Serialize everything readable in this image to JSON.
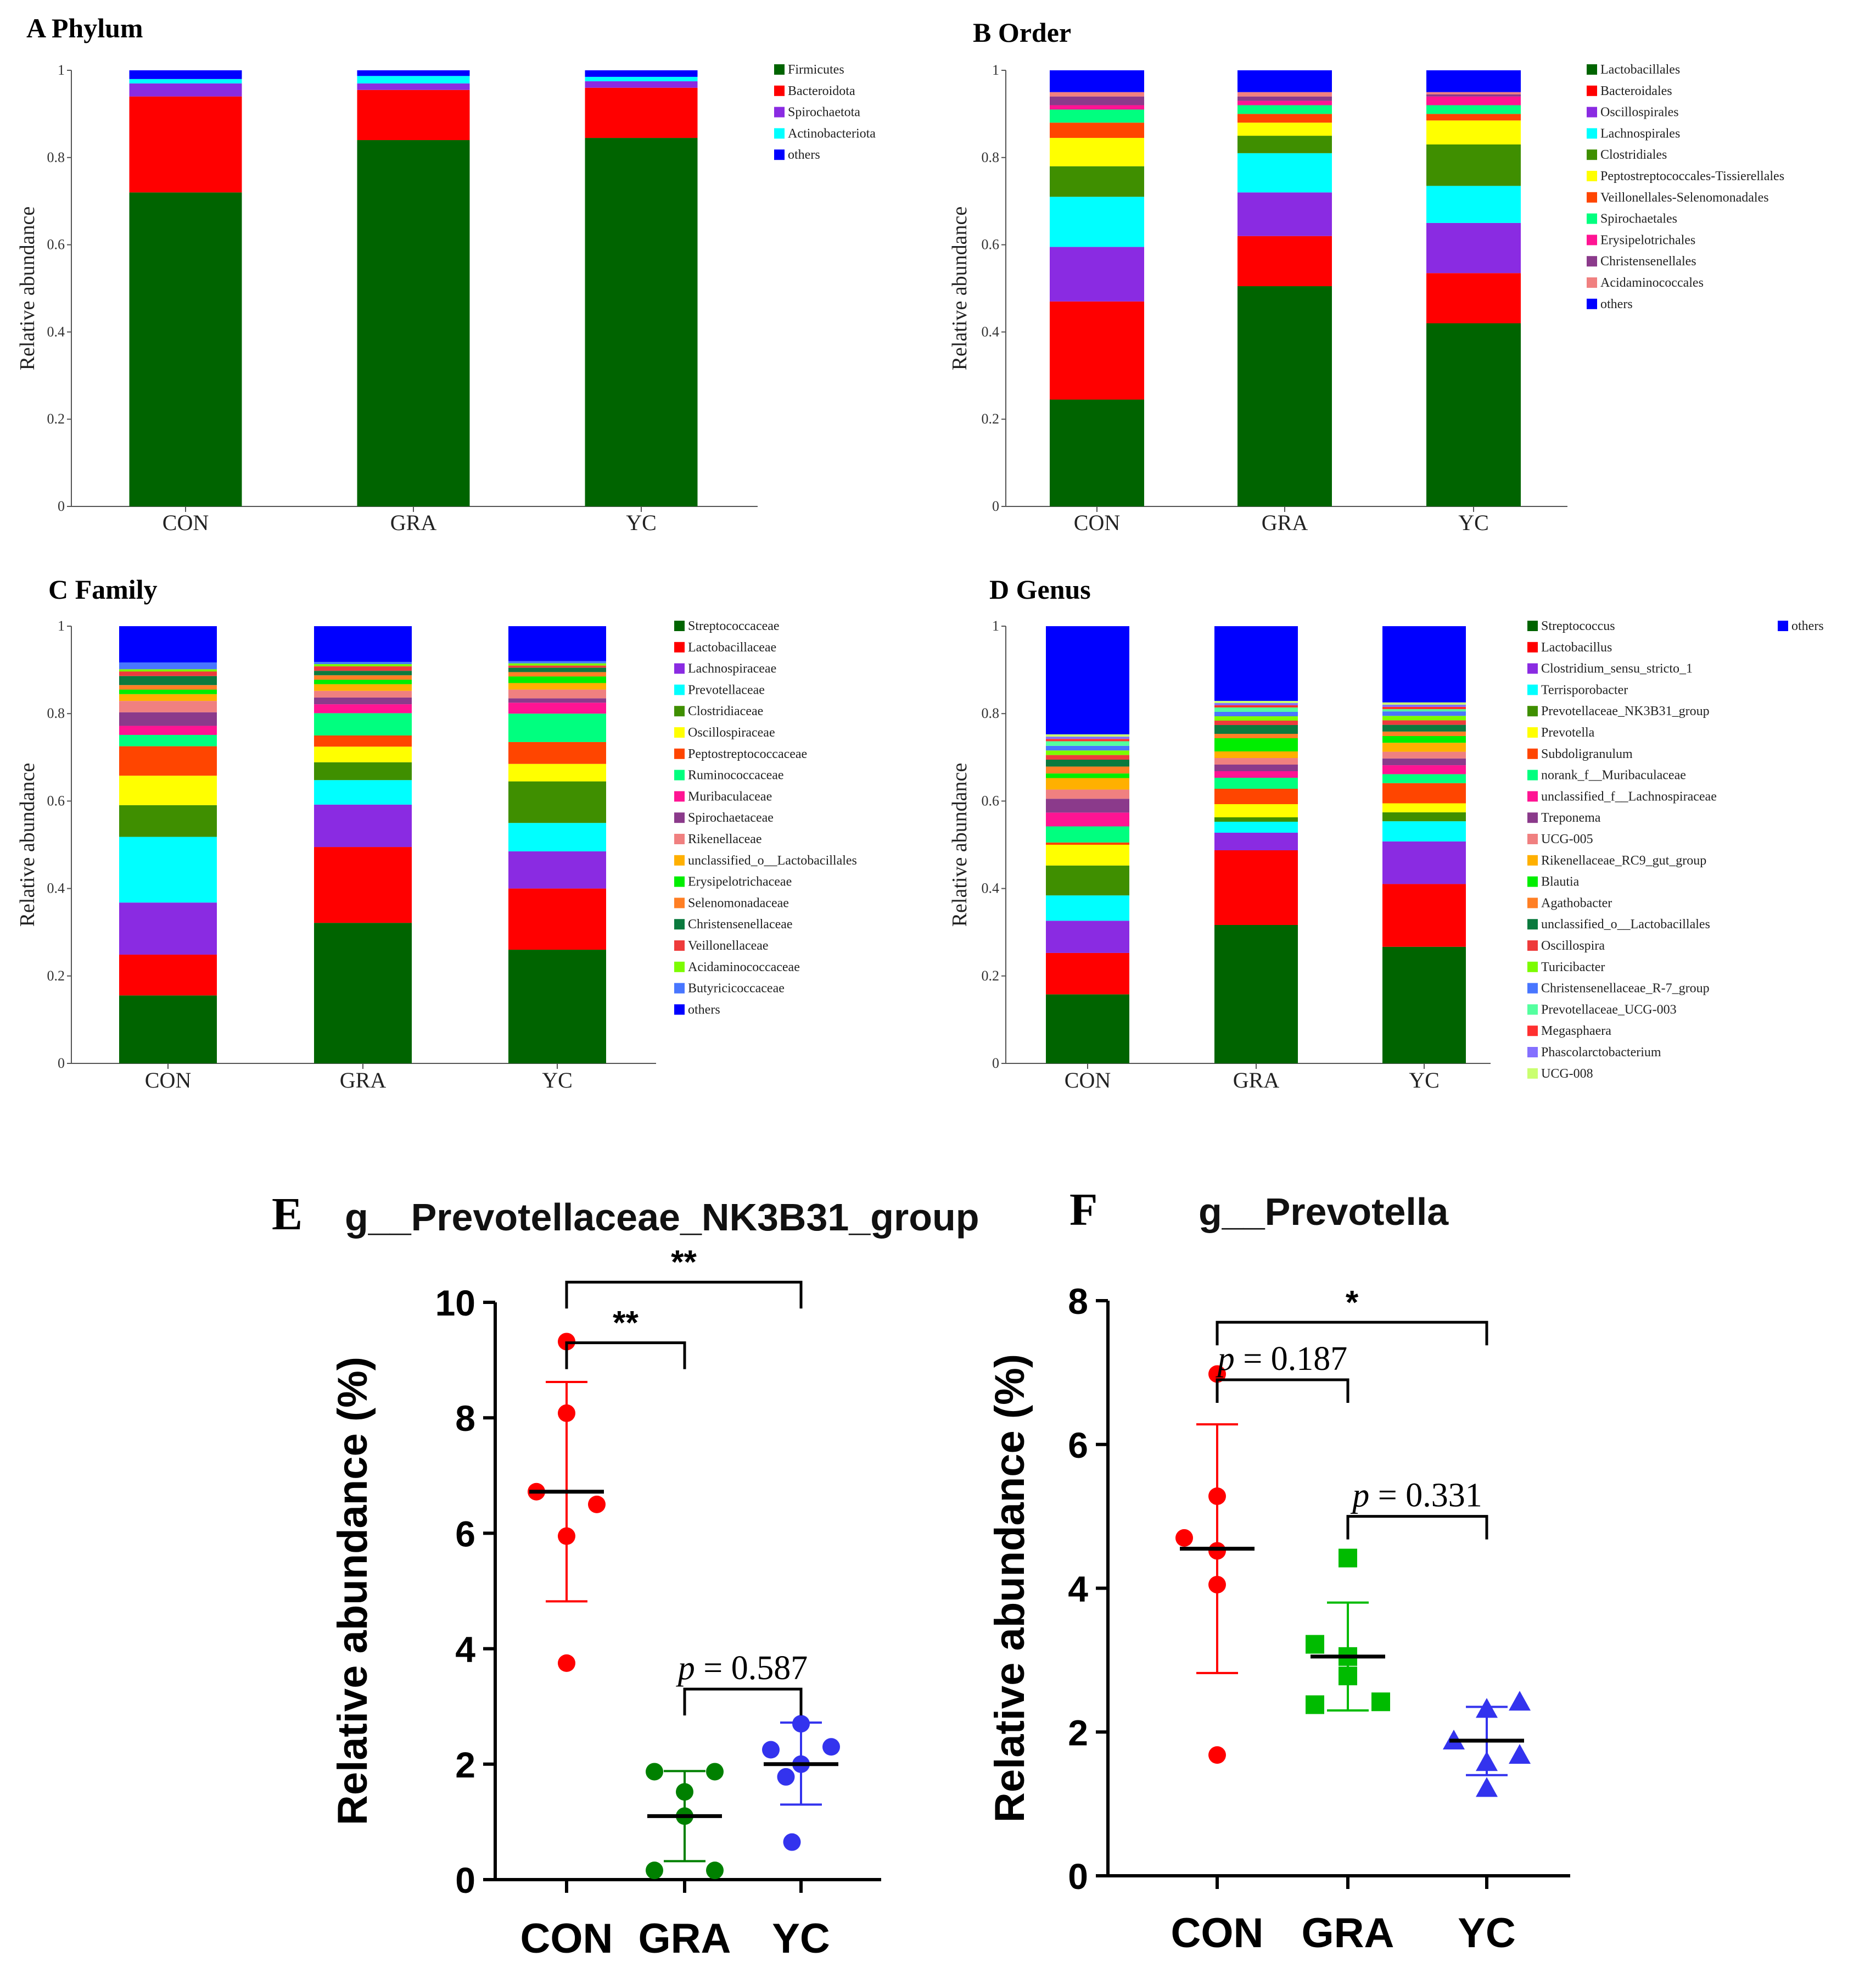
{
  "figure": {
    "panels": [
      {
        "id": "A",
        "label": "A Phylum"
      },
      {
        "id": "B",
        "label": "B Order"
      },
      {
        "id": "C",
        "label": "C Family"
      },
      {
        "id": "D",
        "label": "D Genus"
      }
    ]
  },
  "chart_data": [
    {
      "panel": "A",
      "type": "bar",
      "stacked": true,
      "title": "A Phylum",
      "ylabel": "Relative abundance",
      "ylim": [
        0,
        1
      ],
      "yticks": [
        "0",
        "0.2",
        "0.4",
        "0.6",
        "0.8",
        "1"
      ],
      "categories": [
        "CON",
        "GRA",
        "YC"
      ],
      "series": [
        {
          "name": "Firmicutes",
          "color": "#006400",
          "values": [
            0.72,
            0.84,
            0.845
          ]
        },
        {
          "name": "Bacteroidota",
          "color": "#FF0000",
          "values": [
            0.22,
            0.115,
            0.115
          ]
        },
        {
          "name": "Spirochaetota",
          "color": "#8A2BE2",
          "values": [
            0.03,
            0.015,
            0.015
          ]
        },
        {
          "name": "Actinobacteriota",
          "color": "#00FFFF",
          "values": [
            0.01,
            0.017,
            0.01
          ]
        },
        {
          "name": "others",
          "color": "#0000FF",
          "values": [
            0.02,
            0.013,
            0.015
          ]
        }
      ]
    },
    {
      "panel": "B",
      "type": "bar",
      "stacked": true,
      "title": "B Order",
      "ylabel": "Relative abundance",
      "ylim": [
        0,
        1
      ],
      "yticks": [
        "0",
        "0.2",
        "0.4",
        "0.6",
        "0.8",
        "1"
      ],
      "categories": [
        "CON",
        "GRA",
        "YC"
      ],
      "series": [
        {
          "name": "Lactobacillales",
          "color": "#006400",
          "values": [
            0.245,
            0.505,
            0.42
          ]
        },
        {
          "name": "Bacteroidales",
          "color": "#FF0000",
          "values": [
            0.225,
            0.115,
            0.115
          ]
        },
        {
          "name": "Oscillospirales",
          "color": "#8A2BE2",
          "values": [
            0.125,
            0.1,
            0.115
          ]
        },
        {
          "name": "Lachnospirales",
          "color": "#00FFFF",
          "values": [
            0.115,
            0.09,
            0.085
          ]
        },
        {
          "name": "Clostridiales",
          "color": "#3F8F00",
          "values": [
            0.07,
            0.04,
            0.095
          ]
        },
        {
          "name": "Peptostreptococcales-Tissierellales",
          "color": "#FFFF00",
          "values": [
            0.065,
            0.03,
            0.055
          ]
        },
        {
          "name": "Veillonellales-Selenomonadales",
          "color": "#FF4500",
          "values": [
            0.035,
            0.02,
            0.015
          ]
        },
        {
          "name": "Spirochaetales",
          "color": "#00FF7F",
          "values": [
            0.03,
            0.02,
            0.02
          ]
        },
        {
          "name": "Erysipelotrichales",
          "color": "#FF1493",
          "values": [
            0.01,
            0.01,
            0.02
          ]
        },
        {
          "name": "Christensenellales",
          "color": "#8B3A8B",
          "values": [
            0.02,
            0.01,
            0.005
          ]
        },
        {
          "name": "Acidaminococcales",
          "color": "#F08080",
          "values": [
            0.01,
            0.01,
            0.005
          ]
        },
        {
          "name": "others",
          "color": "#0000FF",
          "values": [
            0.05,
            0.05,
            0.05
          ]
        }
      ]
    },
    {
      "panel": "C",
      "type": "bar",
      "stacked": true,
      "title": "C Family",
      "ylabel": "Relative abundance",
      "ylim": [
        0,
        1
      ],
      "yticks": [
        "0",
        "0.2",
        "0.4",
        "0.6",
        "0.8",
        "1"
      ],
      "categories": [
        "CON",
        "GRA",
        "YC"
      ],
      "series": [
        {
          "name": "Streptococcaceae",
          "color": "#006400",
          "values": [
            0.15,
            0.315,
            0.26
          ]
        },
        {
          "name": "Lactobacillaceae",
          "color": "#FF0000",
          "values": [
            0.09,
            0.17,
            0.14
          ]
        },
        {
          "name": "Lachnospiraceae",
          "color": "#8A2BE2",
          "values": [
            0.115,
            0.095,
            0.085
          ]
        },
        {
          "name": "Prevotellaceae",
          "color": "#00FFFF",
          "values": [
            0.145,
            0.055,
            0.065
          ]
        },
        {
          "name": "Clostridiaceae",
          "color": "#3F8F00",
          "values": [
            0.07,
            0.04,
            0.095
          ]
        },
        {
          "name": "Oscillospiraceae",
          "color": "#FFFF00",
          "values": [
            0.065,
            0.035,
            0.04
          ]
        },
        {
          "name": "Peptostreptococcaceae",
          "color": "#FF4500",
          "values": [
            0.065,
            0.025,
            0.05
          ]
        },
        {
          "name": "Ruminococcaceae",
          "color": "#00FF7F",
          "values": [
            0.025,
            0.05,
            0.065
          ]
        },
        {
          "name": "Muribaculaceae",
          "color": "#FF1493",
          "values": [
            0.02,
            0.02,
            0.025
          ]
        },
        {
          "name": "Spirochaetaceae",
          "color": "#8B3A8B",
          "values": [
            0.03,
            0.015,
            0.01
          ]
        },
        {
          "name": "Rikenellaceae",
          "color": "#F08080",
          "values": [
            0.025,
            0.015,
            0.02
          ]
        },
        {
          "name": "unclassified_o__Lactobacillales",
          "color": "#FFB000",
          "values": [
            0.015,
            0.015,
            0.015
          ]
        },
        {
          "name": "Erysipelotrichaceae",
          "color": "#00EE00",
          "values": [
            0.01,
            0.01,
            0.015
          ]
        },
        {
          "name": "Selenomonadaceae",
          "color": "#FF7F24",
          "values": [
            0.01,
            0.01,
            0.01
          ]
        },
        {
          "name": "Christensenellaceae",
          "color": "#0B7A3E",
          "values": [
            0.02,
            0.01,
            0.01
          ]
        },
        {
          "name": "Veillonellaceae",
          "color": "#EE3B3B",
          "values": [
            0.01,
            0.01,
            0.005
          ]
        },
        {
          "name": "Acidaminococcaceae",
          "color": "#7CFC00",
          "values": [
            0.005,
            0.005,
            0.005
          ]
        },
        {
          "name": "Butyricicoccaceae",
          "color": "#4876FF",
          "values": [
            0.015,
            0.005,
            0.005
          ]
        },
        {
          "name": "others",
          "color": "#0000FF",
          "values": [
            0.08,
            0.08,
            0.08
          ]
        }
      ]
    },
    {
      "panel": "D",
      "type": "bar",
      "stacked": true,
      "title": "D Genus",
      "ylabel": "Relative abundance",
      "ylim": [
        0,
        1
      ],
      "yticks": [
        "0",
        "0.2",
        "0.4",
        "0.6",
        "0.8",
        "1"
      ],
      "categories": [
        "CON",
        "GRA",
        "YC"
      ],
      "series": [
        {
          "name": "Streptococcus",
          "color": "#006400",
          "values": [
            0.15,
            0.315,
            0.26
          ]
        },
        {
          "name": "Lactobacillus",
          "color": "#FF0000",
          "values": [
            0.09,
            0.17,
            0.14
          ]
        },
        {
          "name": "Clostridium_sensu_stricto_1",
          "color": "#8A2BE2",
          "values": [
            0.07,
            0.04,
            0.095
          ]
        },
        {
          "name": "Terrisporobacter",
          "color": "#00FFFF",
          "values": [
            0.055,
            0.025,
            0.045
          ]
        },
        {
          "name": "Prevotellaceae_NK3B31_group",
          "color": "#3F8F00",
          "values": [
            0.065,
            0.01,
            0.02
          ]
        },
        {
          "name": "Prevotella",
          "color": "#FFFF00",
          "values": [
            0.045,
            0.03,
            0.02
          ]
        },
        {
          "name": "Subdoligranulum",
          "color": "#FF4500",
          "values": [
            0.005,
            0.035,
            0.045
          ]
        },
        {
          "name": "norank_f__Muribaculaceae",
          "color": "#00FF7F",
          "values": [
            0.035,
            0.025,
            0.02
          ]
        },
        {
          "name": "unclassified_f__Lachnospiraceae",
          "color": "#FF1493",
          "values": [
            0.03,
            0.015,
            0.02
          ]
        },
        {
          "name": "Treponema",
          "color": "#8B3A8B",
          "values": [
            0.03,
            0.015,
            0.015
          ]
        },
        {
          "name": "UCG-005",
          "color": "#F08080",
          "values": [
            0.02,
            0.015,
            0.015
          ]
        },
        {
          "name": "Rikenellaceae_RC9_gut_group",
          "color": "#FFB000",
          "values": [
            0.025,
            0.015,
            0.02
          ]
        },
        {
          "name": "Blautia",
          "color": "#00EE00",
          "values": [
            0.01,
            0.03,
            0.015
          ]
        },
        {
          "name": "Agathobacter",
          "color": "#FF7F24",
          "values": [
            0.015,
            0.01,
            0.01
          ]
        },
        {
          "name": "unclassified_o__Lactobacillales",
          "color": "#0B7A3E",
          "values": [
            0.015,
            0.02,
            0.015
          ]
        },
        {
          "name": "Oscillospira",
          "color": "#EE3B3B",
          "values": [
            0.01,
            0.01,
            0.01
          ]
        },
        {
          "name": "Turicibacter",
          "color": "#7CFC00",
          "values": [
            0.01,
            0.01,
            0.01
          ]
        },
        {
          "name": "Christensenellaceae_R-7_group",
          "color": "#4876FF",
          "values": [
            0.01,
            0.01,
            0.01
          ]
        },
        {
          "name": "Prevotellaceae_UCG-003",
          "color": "#54FF9F",
          "values": [
            0.01,
            0.01,
            0.005
          ]
        },
        {
          "name": "Megasphaera",
          "color": "#FF3030",
          "values": [
            0.005,
            0.005,
            0.005
          ]
        },
        {
          "name": "Phascolarctobacterium",
          "color": "#8470FF",
          "values": [
            0.005,
            0.005,
            0.005
          ]
        },
        {
          "name": "UCG-008",
          "color": "#CAFF70",
          "values": [
            0.005,
            0.005,
            0.005
          ]
        },
        {
          "name": "others",
          "color": "#0000FF",
          "values": [
            0.235,
            0.17,
            0.17
          ]
        }
      ]
    },
    {
      "panel": "E",
      "type": "scatter",
      "panel_letter": "E",
      "title": "g__Prevotellaceae_NK3B31_group",
      "ylabel": "Relative abundance (%)",
      "ylim": [
        0,
        10
      ],
      "yticks": [
        "0",
        "2",
        "4",
        "6",
        "8",
        "10"
      ],
      "categories": [
        "CON",
        "GRA",
        "YC"
      ],
      "groups": [
        {
          "name": "CON",
          "color": "#FF0000",
          "marker": "circle",
          "mean": 6.72,
          "sd_low": 4.82,
          "sd_high": 8.62,
          "points": [
            {
              "pos": 0,
              "y": 9.32
            },
            {
              "pos": 0,
              "y": 8.08
            },
            {
              "pos": -1,
              "y": 6.72
            },
            {
              "pos": 1,
              "y": 6.5
            },
            {
              "pos": 0,
              "y": 5.95
            },
            {
              "pos": 0,
              "y": 3.75
            }
          ]
        },
        {
          "name": "GRA",
          "color": "#008000",
          "marker": "circle",
          "mean": 1.1,
          "sd_low": 0.32,
          "sd_high": 1.88,
          "points": [
            {
              "pos": -1,
              "y": 1.87
            },
            {
              "pos": 1,
              "y": 1.87
            },
            {
              "pos": 0,
              "y": 1.52
            },
            {
              "pos": 0,
              "y": 1.1
            },
            {
              "pos": -1,
              "y": 0.16
            },
            {
              "pos": 1,
              "y": 0.16
            }
          ]
        },
        {
          "name": "YC",
          "color": "#3333EE",
          "marker": "circle",
          "mean": 2.0,
          "sd_low": 1.3,
          "sd_high": 2.72,
          "points": [
            {
              "pos": 0,
              "y": 2.7
            },
            {
              "pos": -1,
              "y": 2.25
            },
            {
              "pos": 1,
              "y": 2.3
            },
            {
              "pos": 0,
              "y": 2.0
            },
            {
              "pos": -0.5,
              "y": 1.78
            },
            {
              "pos": -0.3,
              "y": 0.65
            }
          ]
        }
      ],
      "annotations": [
        {
          "from": 0,
          "to": 1,
          "level": 9.3,
          "text": "**",
          "italic_p": false
        },
        {
          "from": 0,
          "to": 2,
          "level": 10.35,
          "text": "**",
          "italic_p": false
        },
        {
          "from": 1,
          "to": 2,
          "level": 3.3,
          "text": "= 0.587",
          "italic_p": true
        }
      ]
    },
    {
      "panel": "F",
      "type": "scatter",
      "panel_letter": "F",
      "title": "g__Prevotella",
      "ylabel": "Relative abundance (%)",
      "ylim": [
        0,
        8
      ],
      "yticks": [
        "0",
        "2",
        "4",
        "6",
        "8"
      ],
      "categories": [
        "CON",
        "GRA",
        "YC"
      ],
      "groups": [
        {
          "name": "CON",
          "color": "#FF0000",
          "marker": "circle",
          "mean": 4.55,
          "sd_low": 2.82,
          "sd_high": 6.28,
          "points": [
            {
              "pos": 0,
              "y": 6.98
            },
            {
              "pos": 0,
              "y": 5.28
            },
            {
              "pos": -1,
              "y": 4.7
            },
            {
              "pos": 0,
              "y": 4.52
            },
            {
              "pos": 0,
              "y": 4.05
            },
            {
              "pos": 0,
              "y": 1.68
            }
          ]
        },
        {
          "name": "GRA",
          "color": "#00BB00",
          "marker": "square",
          "mean": 3.05,
          "sd_low": 2.3,
          "sd_high": 3.8,
          "points": [
            {
              "pos": 0,
              "y": 4.42
            },
            {
              "pos": -1,
              "y": 3.22
            },
            {
              "pos": 0,
              "y": 3.05
            },
            {
              "pos": 0,
              "y": 2.78
            },
            {
              "pos": -1,
              "y": 2.38
            },
            {
              "pos": 1,
              "y": 2.42
            }
          ]
        },
        {
          "name": "YC",
          "color": "#3333EE",
          "marker": "triangle",
          "mean": 1.88,
          "sd_low": 1.4,
          "sd_high": 2.35,
          "points": [
            {
              "pos": 0,
              "y": 2.32
            },
            {
              "pos": 1,
              "y": 2.42
            },
            {
              "pos": -1,
              "y": 1.88
            },
            {
              "pos": 1,
              "y": 1.68
            },
            {
              "pos": 0,
              "y": 1.58
            },
            {
              "pos": 0,
              "y": 1.22
            }
          ]
        }
      ],
      "annotations": [
        {
          "from": 0,
          "to": 1,
          "level": 6.9,
          "text": "= 0.187",
          "italic_p": true
        },
        {
          "from": 0,
          "to": 2,
          "level": 7.7,
          "text": "*",
          "italic_p": false
        },
        {
          "from": 1,
          "to": 2,
          "level": 5.0,
          "text": "= 0.331",
          "italic_p": true
        }
      ]
    }
  ]
}
